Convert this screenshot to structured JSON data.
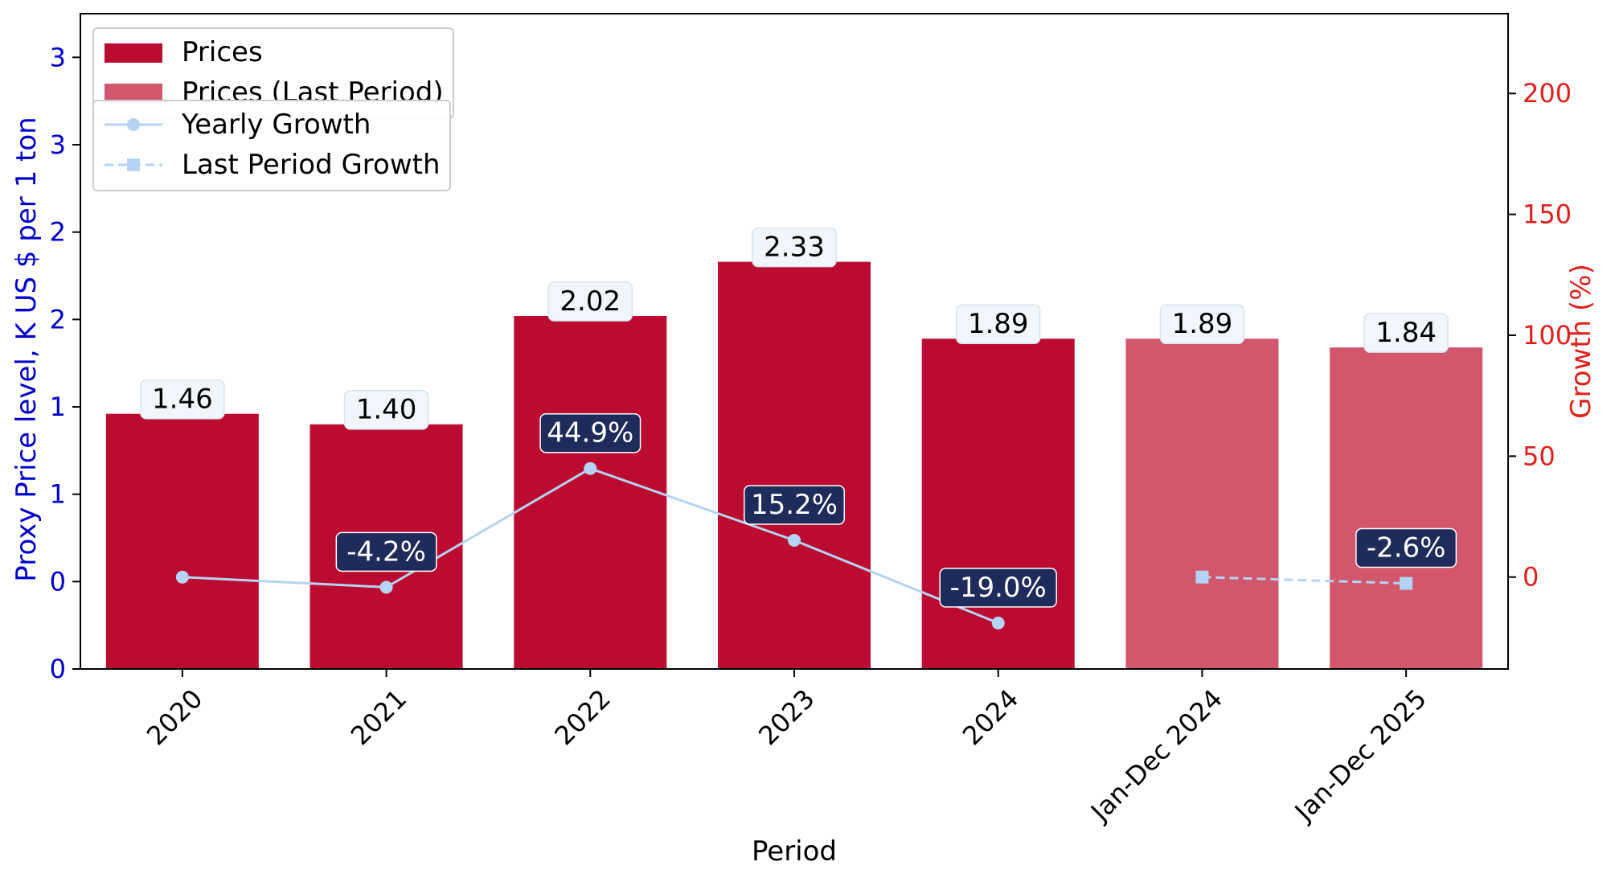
{
  "chart_data": {
    "type": "bar",
    "xlabel": "Period",
    "ylabel": "Proxy Price level, K US $ per 1 ton",
    "y2label": "Growth (%)",
    "categories": [
      "2020",
      "2021",
      "2022",
      "2023",
      "2024",
      "Jan-Dec 2024",
      "Jan-Dec 2025"
    ],
    "series": [
      {
        "name": "Prices",
        "kind": "bar",
        "color": "#bc0b31",
        "values": [
          1.46,
          1.4,
          2.02,
          2.33,
          1.89,
          null,
          null
        ],
        "labels": [
          "1.46",
          "1.40",
          "2.02",
          "2.33",
          "1.89",
          "",
          ""
        ]
      },
      {
        "name": "Prices (Last Period)",
        "kind": "bar",
        "color": "#d2566c",
        "values": [
          null,
          null,
          null,
          null,
          null,
          1.89,
          1.84
        ],
        "labels": [
          "",
          "",
          "",
          "",
          "",
          "1.89",
          "1.84"
        ]
      },
      {
        "name": "Yearly Growth",
        "kind": "line",
        "axis": "right",
        "marker": "circle",
        "dash": "solid",
        "color": "#b5d3f2",
        "values": [
          0,
          -4.2,
          44.9,
          15.2,
          -19.0,
          null,
          null
        ],
        "labels": [
          "",
          "-4.2%",
          "44.9%",
          "15.2%",
          "-19.0%",
          "",
          ""
        ]
      },
      {
        "name": "Last Period Growth",
        "kind": "line",
        "axis": "right",
        "marker": "square",
        "dash": "dashed",
        "color": "#b5d3f2",
        "values": [
          null,
          null,
          null,
          null,
          null,
          0,
          -2.6
        ],
        "labels": [
          "",
          "",
          "",
          "",
          "",
          "",
          "-2.6%"
        ]
      }
    ],
    "ylim": [
      0,
      3.75
    ],
    "y_ticks": [
      0,
      0.5,
      1.0,
      1.5,
      2.0,
      2.5,
      3.0,
      3.5
    ],
    "y_tick_labels": [
      "0",
      "0",
      "1",
      "1",
      "2",
      "2",
      "3",
      "3"
    ],
    "y2lim": [
      -38,
      233
    ],
    "y2_ticks": [
      0,
      50,
      100,
      150,
      200
    ],
    "y2_tick_labels": [
      "0",
      "50",
      "100",
      "150",
      "200"
    ],
    "grid": false,
    "legend_placement": "top-left",
    "colors": {
      "left_axis": "#0000cc",
      "right_axis": "#e0201b",
      "growth_label_bg": "#1f2b5b",
      "value_label_bg": "#f0f6fc"
    }
  }
}
